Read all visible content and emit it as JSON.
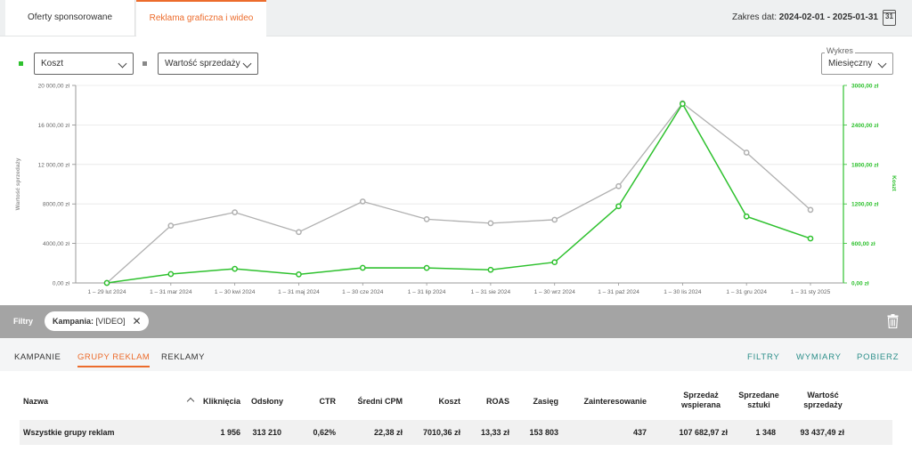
{
  "tabs": [
    {
      "label": "Oferty sponsorowane"
    },
    {
      "label": "Reklama graficzna i wideo"
    }
  ],
  "date_range": {
    "label": "Zakres dat:",
    "value": "2024-02-01 - 2025-01-31",
    "icon_day": "31"
  },
  "controls": {
    "metric1": "Koszt",
    "metric2": "Wartość sprzedaży",
    "chart_type_label": "Wykres",
    "chart_type": "Miesięczny"
  },
  "colors": {
    "accent": "#ec6c2c",
    "gray_series": "#b0b0b0",
    "green_series": "#2ec12e",
    "link": "#2c8f8a"
  },
  "chart_data": {
    "type": "line",
    "categories": [
      "1 – 29 lut 2024",
      "1 – 31 mar 2024",
      "1 – 30 kwi 2024",
      "1 – 31 maj 2024",
      "1 – 30 cze 2024",
      "1 – 31 lip 2024",
      "1 – 31 sie 2024",
      "1 – 30 wrz 2024",
      "1 – 31 paź 2024",
      "1 – 30 lis 2024",
      "1 – 31 gru 2024",
      "1 – 31 sty 2025"
    ],
    "series": [
      {
        "name": "Wartość sprzedaży",
        "axis": "left",
        "color": "#b0b0b0",
        "values": [
          0,
          5800,
          7150,
          5150,
          8250,
          6450,
          6050,
          6400,
          9800,
          18200,
          13200,
          7400
        ]
      },
      {
        "name": "Koszt",
        "axis": "right",
        "color": "#2ec12e",
        "values": [
          0,
          135,
          215,
          130,
          230,
          228,
          200,
          315,
          1165,
          2720,
          1010,
          675
        ]
      }
    ],
    "y_left": {
      "label": "Wartość sprzedaży",
      "ticks": [
        "0,00 zł",
        "4000,00 zł",
        "8000,00 zł",
        "12 000,00 zł",
        "16 000,00 zł",
        "20 000,00 zł"
      ],
      "min": 0,
      "max": 20000
    },
    "y_right": {
      "label": "Koszt",
      "ticks": [
        "0,00 zł",
        "600,00 zł",
        "1200,00 zł",
        "1800,00 zł",
        "2400,00 zł",
        "3000,00 zł"
      ],
      "min": 0,
      "max": 3000
    },
    "grid": true
  },
  "filters": {
    "label": "Filtry",
    "chip_key": "Kampania:",
    "chip_value": "[VIDEO]"
  },
  "subtabs": [
    "KAMPANIE",
    "GRUPY REKLAM",
    "REKLAMY"
  ],
  "right_links": [
    "FILTRY",
    "WYMIARY",
    "POBIERZ"
  ],
  "table": {
    "headers": {
      "name": "Nazwa",
      "clicks": "Kliknięcia",
      "views": "Odsłony",
      "ctr": "CTR",
      "cpm": "Średni CPM",
      "cost": "Koszt",
      "roas": "ROAS",
      "reach": "Zasięg",
      "engagement": "Zainteresowanie",
      "assisted_l1": "Sprzedaż",
      "assisted_l2": "wspierana",
      "units_l1": "Sprzedane",
      "units_l2": "sztuki",
      "sales_l1": "Wartość",
      "sales_l2": "sprzedaży"
    },
    "rows": [
      {
        "name": "Wszystkie grupy reklam",
        "clicks": "1 956",
        "views": "313 210",
        "ctr": "0,62%",
        "cpm": "22,38 zł",
        "cost": "7010,36 zł",
        "roas": "13,33 zł",
        "reach": "153 803",
        "engagement": "437",
        "assisted": "107 682,97 zł",
        "units": "1 348",
        "sales": "93 437,49 zł"
      }
    ]
  }
}
